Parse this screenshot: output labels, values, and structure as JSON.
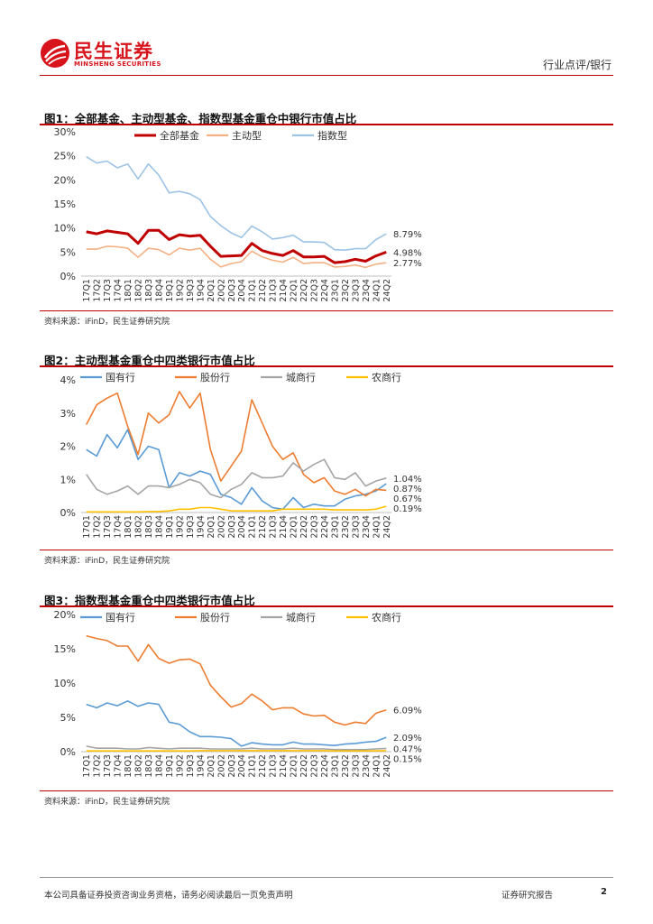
{
  "header": {
    "logo_cn": "民生证券",
    "logo_en": "MINSHENG SECURITIES",
    "category": "行业点评/银行",
    "brand_color": "#d7141c"
  },
  "figures": [
    {
      "title": "图1：全部基金、主动型基金、指数型基金重仓中银行市值占比",
      "source": "资料来源：iFinD，民生证券研究院"
    },
    {
      "title": "图2：主动型基金重仓中四类银行市值占比",
      "source": "资料来源：iFinD，民生证券研究院"
    },
    {
      "title": "图3：指数型基金重仓中四类银行市值占比",
      "source": "资料来源：iFinD，民生证券研究院"
    }
  ],
  "footer": {
    "disclaimer": "本公司具备证券投资咨询业务资格，请务必阅读最后一页免责声明",
    "report_type": "证券研究报告",
    "page": "2"
  },
  "chart_data": [
    {
      "type": "line",
      "title": "图1：全部基金、主动型基金、指数型基金重仓中银行市值占比",
      "x": [
        "17Q1",
        "17Q2",
        "17Q3",
        "17Q4",
        "18Q1",
        "18Q2",
        "18Q3",
        "18Q4",
        "19Q1",
        "19Q2",
        "19Q3",
        "19Q4",
        "20Q1",
        "20Q2",
        "20Q3",
        "20Q4",
        "21Q1",
        "21Q2",
        "21Q3",
        "21Q4",
        "22Q1",
        "22Q2",
        "22Q3",
        "22Q4",
        "23Q1",
        "23Q2",
        "23Q3",
        "23Q4",
        "24Q1",
        "24Q2"
      ],
      "ylim": [
        0,
        30
      ],
      "yticks": [
        0,
        5,
        10,
        15,
        20,
        25,
        30
      ],
      "ytick_labels": [
        "0%",
        "5%",
        "10%",
        "15%",
        "20%",
        "25%",
        "30%"
      ],
      "legend_position": "top",
      "series": [
        {
          "name": "全部基金",
          "color": "#c00000",
          "width": 3,
          "values": [
            9.2,
            8.8,
            9.4,
            9.1,
            8.8,
            6.8,
            9.5,
            9.5,
            7.6,
            8.6,
            8.3,
            8.5,
            6.2,
            4.1,
            4.2,
            4.3,
            6.8,
            5.3,
            4.7,
            4.3,
            5.3,
            4.0,
            4.0,
            4.1,
            2.8,
            3.0,
            3.5,
            3.1,
            4.2,
            4.98
          ],
          "end_label": "4.98%"
        },
        {
          "name": "主动型",
          "color": "#f4b183",
          "width": 1.6,
          "values": [
            5.6,
            5.6,
            6.2,
            6.1,
            5.8,
            3.9,
            5.8,
            5.5,
            4.4,
            5.8,
            5.4,
            5.8,
            3.5,
            1.9,
            2.6,
            3.0,
            5.2,
            4.0,
            3.3,
            2.9,
            3.9,
            2.6,
            2.8,
            2.8,
            1.9,
            2.0,
            2.3,
            1.8,
            2.5,
            2.77
          ],
          "end_label": "2.77%"
        },
        {
          "name": "指数型",
          "color": "#9dc3e6",
          "width": 1.6,
          "values": [
            24.8,
            23.5,
            23.9,
            22.5,
            23.3,
            20.2,
            23.3,
            21.0,
            17.3,
            17.6,
            17.1,
            15.9,
            12.4,
            10.5,
            9.0,
            8.0,
            10.4,
            9.2,
            7.7,
            8.0,
            8.5,
            7.1,
            7.1,
            7.0,
            5.5,
            5.4,
            5.7,
            5.7,
            7.6,
            8.79
          ],
          "end_label": "8.79%"
        }
      ]
    },
    {
      "type": "line",
      "title": "图2：主动型基金重仓中四类银行市值占比",
      "x": [
        "17Q1",
        "17Q2",
        "17Q3",
        "17Q4",
        "18Q1",
        "18Q2",
        "18Q3",
        "18Q4",
        "19Q1",
        "19Q2",
        "19Q3",
        "19Q4",
        "20Q1",
        "20Q2",
        "20Q3",
        "20Q4",
        "21Q1",
        "21Q2",
        "21Q3",
        "21Q4",
        "22Q1",
        "22Q2",
        "22Q3",
        "22Q4",
        "23Q1",
        "23Q2",
        "23Q3",
        "23Q4",
        "24Q1",
        "24Q2"
      ],
      "ylim": [
        0,
        4
      ],
      "yticks": [
        0,
        1,
        2,
        3,
        4
      ],
      "ytick_labels": [
        "0%",
        "1%",
        "2%",
        "3%",
        "4%"
      ],
      "legend_position": "top",
      "series": [
        {
          "name": "国有行",
          "color": "#5b9bd5",
          "width": 1.6,
          "values": [
            1.9,
            1.7,
            2.35,
            1.95,
            2.5,
            1.6,
            2.0,
            1.9,
            0.75,
            1.2,
            1.1,
            1.25,
            1.15,
            0.55,
            0.45,
            0.25,
            0.75,
            0.35,
            0.15,
            0.1,
            0.45,
            0.15,
            0.25,
            0.2,
            0.2,
            0.4,
            0.5,
            0.55,
            0.65,
            0.87
          ],
          "end_label": "0.87%"
        },
        {
          "name": "股份行",
          "color": "#ed7d31",
          "width": 1.6,
          "values": [
            2.65,
            3.25,
            3.45,
            3.6,
            2.6,
            1.75,
            3.0,
            2.7,
            2.95,
            3.65,
            3.15,
            3.6,
            1.9,
            0.95,
            1.4,
            1.85,
            3.4,
            2.7,
            2.0,
            1.6,
            1.8,
            1.15,
            0.9,
            1.05,
            0.65,
            0.55,
            0.7,
            0.5,
            0.7,
            0.67
          ],
          "end_label": "0.67%"
        },
        {
          "name": "城商行",
          "color": "#a5a5a5",
          "width": 1.6,
          "values": [
            1.15,
            0.7,
            0.55,
            0.65,
            0.8,
            0.55,
            0.8,
            0.8,
            0.75,
            0.85,
            1.0,
            0.9,
            0.55,
            0.45,
            0.7,
            0.85,
            1.2,
            1.05,
            1.05,
            1.1,
            1.5,
            1.25,
            1.45,
            1.6,
            1.05,
            1.0,
            1.2,
            0.8,
            0.95,
            1.04
          ],
          "end_label": "1.04%"
        },
        {
          "name": "农商行",
          "color": "#ffc000",
          "width": 1.6,
          "values": [
            0.02,
            0.02,
            0.02,
            0.02,
            0.02,
            0.02,
            0.03,
            0.03,
            0.05,
            0.1,
            0.1,
            0.15,
            0.15,
            0.1,
            0.05,
            0.05,
            0.05,
            0.05,
            0.05,
            0.1,
            0.1,
            0.1,
            0.1,
            0.1,
            0.08,
            0.08,
            0.08,
            0.08,
            0.1,
            0.19
          ],
          "end_label": "0.19%"
        }
      ]
    },
    {
      "type": "line",
      "title": "图3：指数型基金重仓中四类银行市值占比",
      "x": [
        "17Q1",
        "17Q2",
        "17Q3",
        "17Q4",
        "18Q1",
        "18Q2",
        "18Q3",
        "18Q4",
        "19Q1",
        "19Q2",
        "19Q3",
        "19Q4",
        "20Q1",
        "20Q2",
        "20Q3",
        "20Q4",
        "21Q1",
        "21Q2",
        "21Q3",
        "21Q4",
        "22Q1",
        "22Q2",
        "22Q3",
        "22Q4",
        "23Q1",
        "23Q2",
        "23Q3",
        "23Q4",
        "24Q1",
        "24Q2"
      ],
      "ylim": [
        0,
        20
      ],
      "yticks": [
        0,
        5,
        10,
        15,
        20
      ],
      "ytick_labels": [
        "0%",
        "5%",
        "10%",
        "15%",
        "20%"
      ],
      "legend_position": "top",
      "series": [
        {
          "name": "国有行",
          "color": "#5b9bd5",
          "width": 1.6,
          "values": [
            6.9,
            6.4,
            7.1,
            6.7,
            7.4,
            6.6,
            7.1,
            6.9,
            4.3,
            4.0,
            2.9,
            2.2,
            2.2,
            2.1,
            1.9,
            0.8,
            1.3,
            1.1,
            1.0,
            1.0,
            1.4,
            1.1,
            1.1,
            1.0,
            0.9,
            1.1,
            1.2,
            1.4,
            1.5,
            2.09
          ],
          "end_label": "2.09%"
        },
        {
          "name": "股份行",
          "color": "#ed7d31",
          "width": 1.6,
          "values": [
            16.9,
            16.5,
            16.2,
            15.4,
            15.4,
            13.2,
            15.6,
            13.6,
            12.9,
            13.4,
            13.5,
            12.8,
            9.7,
            8.0,
            6.5,
            7.0,
            8.4,
            7.4,
            6.1,
            6.4,
            6.4,
            5.5,
            5.2,
            5.3,
            4.3,
            3.9,
            4.3,
            4.1,
            5.6,
            6.09
          ],
          "end_label": "6.09%"
        },
        {
          "name": "城商行",
          "color": "#a5a5a5",
          "width": 1.6,
          "values": [
            0.8,
            0.5,
            0.5,
            0.5,
            0.4,
            0.4,
            0.6,
            0.5,
            0.4,
            0.5,
            0.5,
            0.5,
            0.4,
            0.4,
            0.4,
            0.4,
            0.5,
            0.4,
            0.4,
            0.4,
            0.5,
            0.4,
            0.4,
            0.4,
            0.3,
            0.3,
            0.3,
            0.3,
            0.4,
            0.47
          ],
          "end_label": "0.47%"
        },
        {
          "name": "农商行",
          "color": "#ffc000",
          "width": 1.6,
          "values": [
            0.1,
            0.1,
            0.1,
            0.1,
            0.1,
            0.1,
            0.1,
            0.1,
            0.1,
            0.1,
            0.1,
            0.15,
            0.15,
            0.15,
            0.15,
            0.15,
            0.15,
            0.15,
            0.15,
            0.15,
            0.15,
            0.15,
            0.15,
            0.15,
            0.1,
            0.1,
            0.1,
            0.1,
            0.12,
            0.15
          ],
          "end_label": "0.15%"
        }
      ]
    }
  ]
}
